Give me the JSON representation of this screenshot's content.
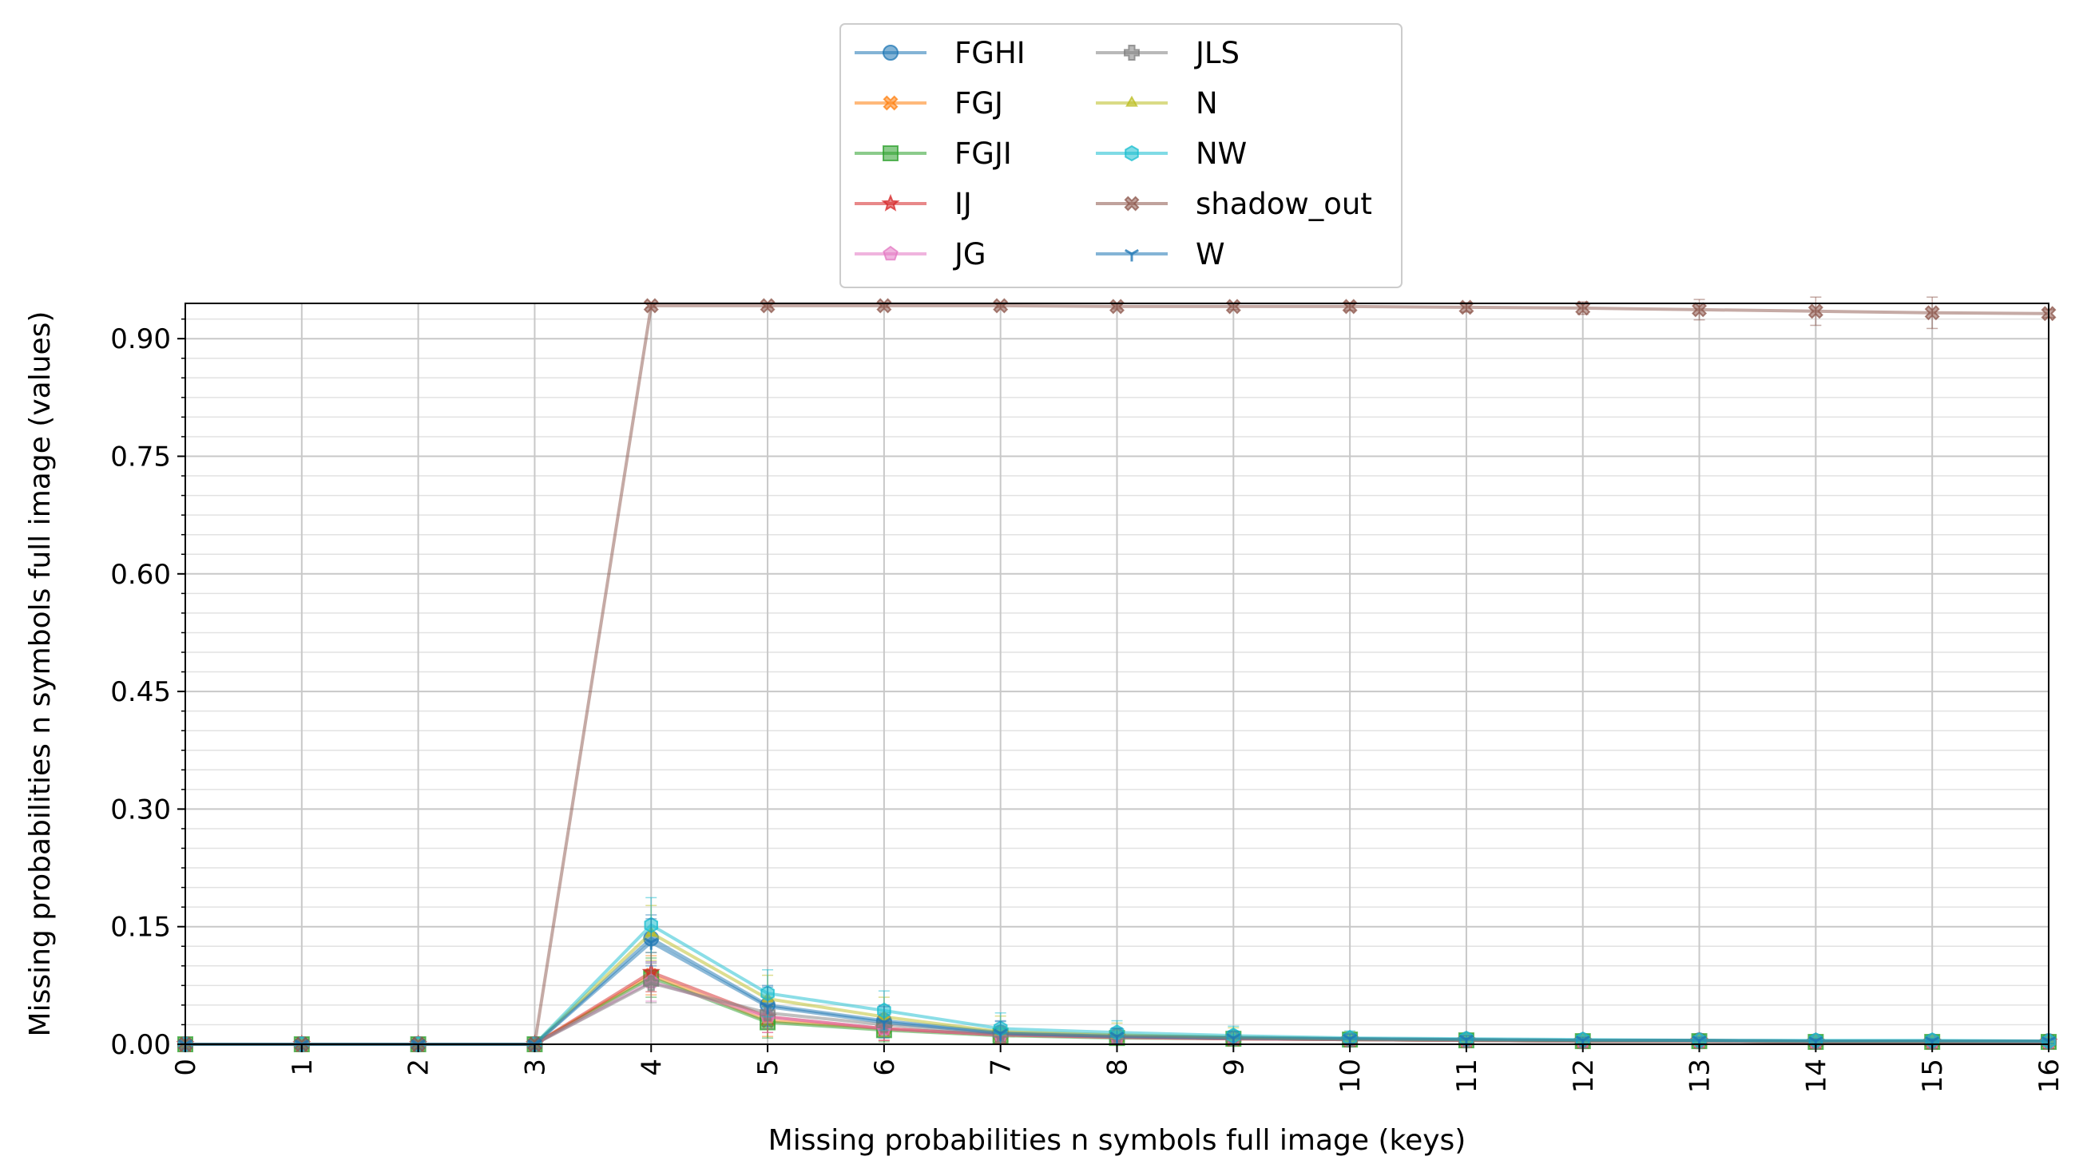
{
  "chart_data": {
    "type": "line",
    "title": "",
    "xlabel": "Missing probabilities n symbols full image (keys)",
    "ylabel": "Missing probabilities n symbols full image (values)",
    "x": [
      0,
      1,
      2,
      3,
      4,
      5,
      6,
      7,
      8,
      9,
      10,
      11,
      12,
      13,
      14,
      15,
      16
    ],
    "xlim": [
      0,
      16
    ],
    "ylim": [
      0,
      0.945
    ],
    "yticks": [
      "0.00",
      "0.15",
      "0.30",
      "0.45",
      "0.60",
      "0.75",
      "0.90"
    ],
    "grid": true,
    "legend_position": "top-center",
    "series": [
      {
        "name": "FGHI",
        "color": "#1f77b4",
        "marker": "circle",
        "values": [
          0,
          0,
          0,
          0,
          0.135,
          0.05,
          0.03,
          0.015,
          0.011,
          0.009,
          0.007,
          0.006,
          0.005,
          0.005,
          0.004,
          0.004,
          0.004
        ],
        "err": [
          0,
          0,
          0,
          0,
          0.03,
          0.025,
          0.02,
          0.015,
          0.01,
          0.008,
          0.006,
          0.005,
          0.004,
          0.004,
          0.003,
          0.003,
          0.003
        ]
      },
      {
        "name": "FGJ",
        "color": "#ff7f0e",
        "marker": "x",
        "values": [
          0,
          0,
          0,
          0,
          0.088,
          0.03,
          0.02,
          0.012,
          0.009,
          0.007,
          0.006,
          0.005,
          0.004,
          0.004,
          0.003,
          0.003,
          0.003
        ],
        "err": [
          0,
          0,
          0,
          0,
          0.025,
          0.02,
          0.015,
          0.01,
          0.008,
          0.006,
          0.005,
          0.004,
          0.003,
          0.003,
          0.003,
          0.002,
          0.002
        ]
      },
      {
        "name": "FGJI",
        "color": "#2ca02c",
        "marker": "square",
        "values": [
          0,
          0,
          0,
          0,
          0.085,
          0.028,
          0.018,
          0.011,
          0.008,
          0.007,
          0.006,
          0.005,
          0.004,
          0.004,
          0.003,
          0.003,
          0.003
        ],
        "err": [
          0,
          0,
          0,
          0,
          0.025,
          0.02,
          0.015,
          0.01,
          0.008,
          0.006,
          0.005,
          0.004,
          0.003,
          0.003,
          0.003,
          0.002,
          0.002
        ]
      },
      {
        "name": "IJ",
        "color": "#d62728",
        "marker": "star",
        "values": [
          0,
          0,
          0,
          0,
          0.092,
          0.035,
          0.02,
          0.012,
          0.009,
          0.007,
          0.006,
          0.005,
          0.004,
          0.004,
          0.003,
          0.003,
          0.003
        ],
        "err": [
          0,
          0,
          0,
          0,
          0.025,
          0.02,
          0.015,
          0.01,
          0.008,
          0.006,
          0.005,
          0.004,
          0.003,
          0.003,
          0.003,
          0.002,
          0.002
        ]
      },
      {
        "name": "JG",
        "color": "#e377c2",
        "marker": "pentagon",
        "values": [
          0,
          0,
          0,
          0,
          0.08,
          0.035,
          0.02,
          0.012,
          0.009,
          0.007,
          0.006,
          0.005,
          0.004,
          0.004,
          0.003,
          0.003,
          0.003
        ],
        "err": [
          0,
          0,
          0,
          0,
          0.025,
          0.02,
          0.015,
          0.01,
          0.008,
          0.006,
          0.005,
          0.004,
          0.003,
          0.003,
          0.003,
          0.002,
          0.002
        ]
      },
      {
        "name": "JLS",
        "color": "#7f7f7f",
        "marker": "plus",
        "values": [
          0,
          0,
          0,
          0,
          0.078,
          0.04,
          0.025,
          0.013,
          0.01,
          0.008,
          0.006,
          0.005,
          0.004,
          0.004,
          0.003,
          0.003,
          0.003
        ],
        "err": [
          0,
          0,
          0,
          0,
          0.025,
          0.02,
          0.015,
          0.01,
          0.008,
          0.006,
          0.005,
          0.004,
          0.003,
          0.003,
          0.003,
          0.002,
          0.002
        ]
      },
      {
        "name": "N",
        "color": "#bcbd22",
        "marker": "triangle",
        "values": [
          0,
          0,
          0,
          0,
          0.142,
          0.058,
          0.035,
          0.016,
          0.012,
          0.009,
          0.007,
          0.006,
          0.005,
          0.005,
          0.004,
          0.004,
          0.004
        ],
        "err": [
          0,
          0,
          0,
          0,
          0.035,
          0.03,
          0.025,
          0.02,
          0.015,
          0.012,
          0.009,
          0.006,
          0.005,
          0.004,
          0.004,
          0.003,
          0.003
        ]
      },
      {
        "name": "NW",
        "color": "#17becf",
        "marker": "hexagon",
        "values": [
          0,
          0,
          0,
          0,
          0.152,
          0.065,
          0.043,
          0.02,
          0.015,
          0.011,
          0.008,
          0.007,
          0.006,
          0.005,
          0.005,
          0.005,
          0.004
        ],
        "err": [
          0,
          0,
          0,
          0,
          0.035,
          0.03,
          0.025,
          0.02,
          0.015,
          0.012,
          0.009,
          0.006,
          0.005,
          0.004,
          0.004,
          0.003,
          0.003
        ]
      },
      {
        "name": "shadow_out",
        "color": "#8c564b",
        "marker": "xfilled",
        "values": [
          0,
          0,
          0,
          0,
          0.942,
          0.942,
          0.942,
          0.942,
          0.941,
          0.941,
          0.941,
          0.94,
          0.939,
          0.937,
          0.935,
          0.933,
          0.932
        ],
        "err": [
          0,
          0,
          0,
          0,
          0.002,
          0.002,
          0.002,
          0.002,
          0.003,
          0.004,
          0.005,
          0.006,
          0.008,
          0.013,
          0.018,
          0.02,
          0.005
        ]
      },
      {
        "name": "W",
        "color": "#1f77b4",
        "marker": "tri_down",
        "values": [
          0,
          0,
          0,
          0,
          0.13,
          0.048,
          0.028,
          0.014,
          0.01,
          0.008,
          0.007,
          0.006,
          0.005,
          0.005,
          0.004,
          0.004,
          0.004
        ],
        "err": [
          0,
          0,
          0,
          0,
          0.03,
          0.025,
          0.02,
          0.015,
          0.01,
          0.008,
          0.006,
          0.005,
          0.004,
          0.004,
          0.003,
          0.003,
          0.003
        ]
      }
    ]
  }
}
